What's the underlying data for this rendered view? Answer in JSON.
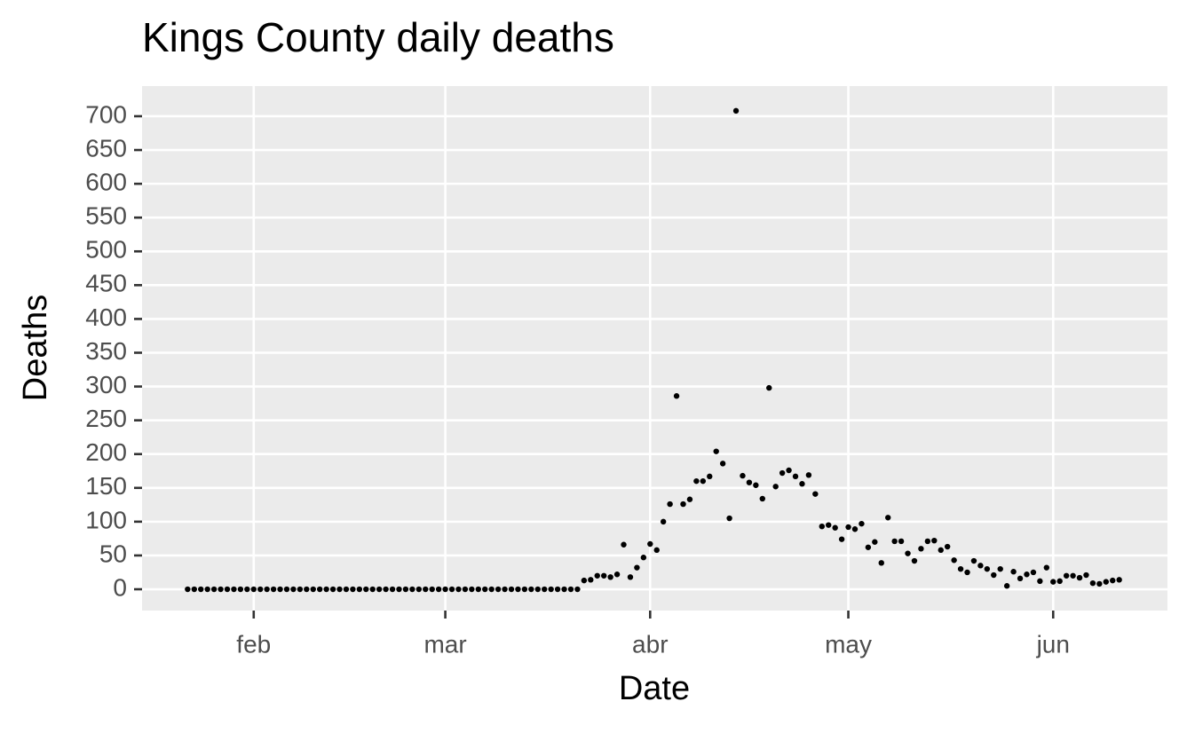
{
  "chart_data": {
    "type": "scatter",
    "title": "Kings County daily deaths",
    "x_label": "Date",
    "y_label": "Deaths",
    "x": [
      22,
      23,
      24,
      25,
      26,
      27,
      28,
      29,
      30,
      31,
      32,
      33,
      34,
      35,
      36,
      37,
      38,
      39,
      40,
      41,
      42,
      43,
      44,
      45,
      46,
      47,
      48,
      49,
      50,
      51,
      52,
      53,
      54,
      55,
      56,
      57,
      58,
      59,
      60,
      61,
      62,
      63,
      64,
      65,
      66,
      67,
      68,
      69,
      70,
      71,
      72,
      73,
      74,
      75,
      76,
      77,
      78,
      79,
      80,
      81,
      82,
      83,
      84,
      85,
      86,
      87,
      88,
      89,
      90,
      91,
      92,
      93,
      94,
      95,
      96,
      97,
      98,
      99,
      100,
      101,
      102,
      103,
      104,
      105,
      106,
      107,
      108,
      109,
      110,
      111,
      112,
      113,
      114,
      115,
      116,
      117,
      118,
      119,
      120,
      121,
      122,
      123,
      124,
      125,
      126,
      127,
      128,
      129,
      130,
      131,
      132,
      133,
      134,
      135,
      136,
      137,
      138,
      139,
      140,
      141,
      142,
      143,
      144,
      145,
      146,
      147,
      148,
      149,
      150,
      151,
      152,
      153,
      154,
      155,
      156,
      157,
      158,
      159,
      160,
      161,
      162,
      163
    ],
    "values": [
      0,
      0,
      0,
      0,
      0,
      0,
      0,
      0,
      0,
      0,
      0,
      0,
      0,
      0,
      0,
      0,
      0,
      0,
      0,
      0,
      0,
      0,
      0,
      0,
      0,
      0,
      0,
      0,
      0,
      0,
      0,
      0,
      0,
      0,
      0,
      0,
      0,
      0,
      0,
      0,
      0,
      0,
      0,
      0,
      0,
      0,
      0,
      0,
      0,
      0,
      0,
      0,
      0,
      0,
      0,
      0,
      0,
      0,
      0,
      0,
      13,
      14,
      20,
      20,
      18,
      22,
      66,
      18,
      32,
      47,
      67,
      58,
      100,
      126,
      286,
      126,
      133,
      160,
      160,
      167,
      204,
      186,
      105,
      708,
      168,
      158,
      154,
      134,
      298,
      152,
      172,
      176,
      167,
      156,
      169,
      141,
      93,
      95,
      91,
      74,
      92,
      89,
      97,
      62,
      70,
      39,
      106,
      71,
      71,
      53,
      42,
      60,
      71,
      72,
      58,
      63,
      43,
      30,
      25,
      42,
      35,
      30,
      21,
      30,
      5,
      26,
      16,
      22,
      25,
      12,
      32,
      11,
      12,
      20,
      20,
      17,
      21,
      9,
      8,
      11,
      13,
      14
    ],
    "color": "#000000",
    "xlim": [
      15.1,
      170.3
    ],
    "xticks": [
      {
        "value": 32,
        "label": "feb"
      },
      {
        "value": 61,
        "label": "mar"
      },
      {
        "value": 92,
        "label": "abr"
      },
      {
        "value": 122,
        "label": "may"
      },
      {
        "value": 153,
        "label": "jun"
      }
    ],
    "ylim": [
      -31.5,
      744.6
    ],
    "yticks": [
      0,
      50,
      100,
      150,
      200,
      250,
      300,
      350,
      400,
      450,
      500,
      550,
      600,
      650,
      700
    ],
    "grid": true
  }
}
